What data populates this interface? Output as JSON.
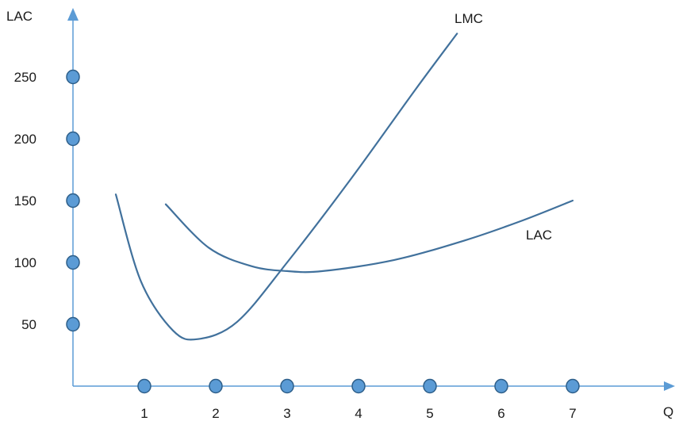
{
  "chart_data": {
    "type": "line",
    "ylabel": "LAC",
    "xlabel": "Q",
    "x_ticks": [
      "1",
      "2",
      "3",
      "4",
      "5",
      "6",
      "7"
    ],
    "y_ticks": [
      "50",
      "100",
      "150",
      "200",
      "250"
    ],
    "grid": false,
    "legend": "none",
    "colors": {
      "axis": "#5b9bd5",
      "curve": "#41719c",
      "marker_fill": "#5b9bd5",
      "marker_stroke": "#2e5f8a"
    },
    "series": [
      {
        "name": "LMC",
        "x": [
          0.6,
          0.95,
          1.4,
          1.75,
          2.3,
          3.0,
          3.9,
          4.8,
          5.38
        ],
        "y": [
          155,
          85,
          45,
          38,
          52,
          100,
          168,
          240,
          285
        ]
      },
      {
        "name": "LAC",
        "x": [
          1.3,
          1.9,
          2.5,
          3.0,
          3.5,
          4.5,
          5.5,
          6.3,
          7.0
        ],
        "y": [
          147,
          112,
          97,
          93,
          93,
          102,
          118,
          134,
          150
        ]
      }
    ]
  }
}
